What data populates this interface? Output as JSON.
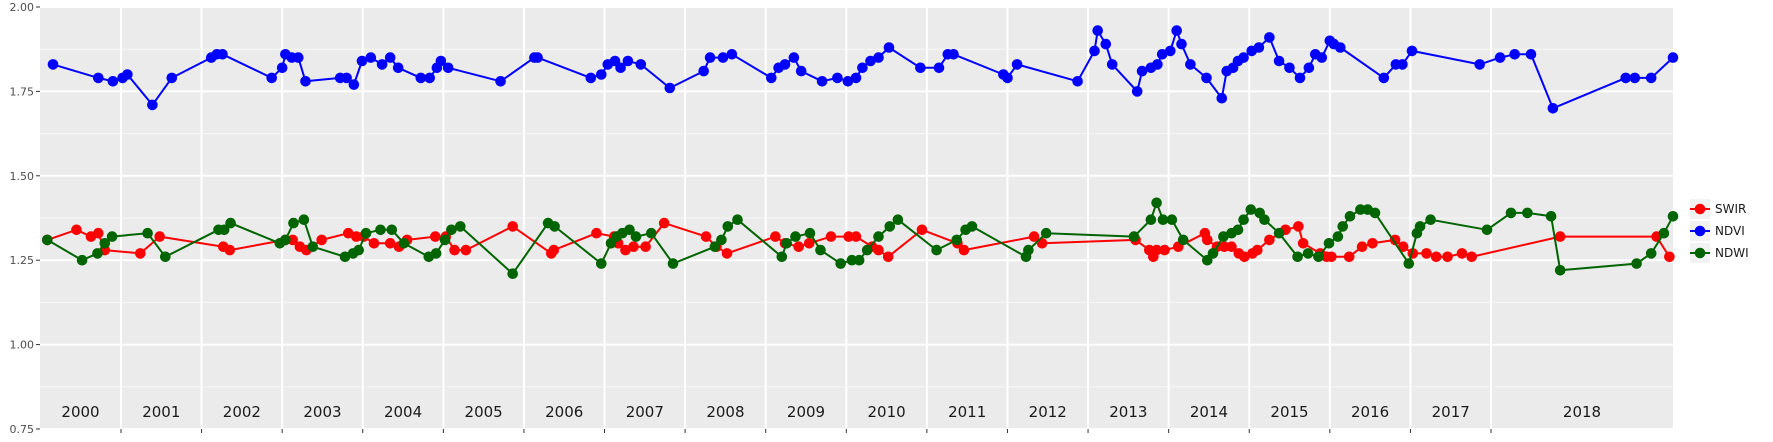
{
  "chart_data": {
    "type": "line",
    "title": "",
    "xlabel": "",
    "ylabel": "",
    "xlim": [
      2000.0,
      2018.75
    ],
    "ylim": [
      0.75,
      2.0
    ],
    "y_ticks": [
      "0.75",
      "1.00",
      "1.25",
      "1.50",
      "1.75",
      "2.00"
    ],
    "year_labels": [
      "2000",
      "2001",
      "2002",
      "2003",
      "2004",
      "2005",
      "2006",
      "2007",
      "2008",
      "2009",
      "2010",
      "2011",
      "2012",
      "2013",
      "2014",
      "2015",
      "2016",
      "2017",
      "2018"
    ],
    "grid": true,
    "legend_position": "right",
    "series": [
      {
        "name": "SWIR",
        "color": "#ff0000",
        "points": [
          [
            2000.09,
            1.31
          ],
          [
            2000.45,
            1.34
          ],
          [
            2000.63,
            1.32
          ],
          [
            2000.72,
            1.33
          ],
          [
            2000.8,
            1.28
          ],
          [
            2001.24,
            1.27
          ],
          [
            2001.48,
            1.32
          ],
          [
            2002.27,
            1.29
          ],
          [
            2002.35,
            1.28
          ],
          [
            2003.04,
            1.31
          ],
          [
            2003.13,
            1.31
          ],
          [
            2003.22,
            1.29
          ],
          [
            2003.3,
            1.28
          ],
          [
            2003.49,
            1.31
          ],
          [
            2003.82,
            1.33
          ],
          [
            2003.92,
            1.32
          ],
          [
            2004.01,
            1.32
          ],
          [
            2004.14,
            1.3
          ],
          [
            2004.34,
            1.3
          ],
          [
            2004.45,
            1.29
          ],
          [
            2004.55,
            1.31
          ],
          [
            2004.9,
            1.32
          ],
          [
            2005.03,
            1.32
          ],
          [
            2005.14,
            1.28
          ],
          [
            2005.28,
            1.28
          ],
          [
            2005.86,
            1.35
          ],
          [
            2006.34,
            1.27
          ],
          [
            2006.37,
            1.28
          ],
          [
            2006.9,
            1.33
          ],
          [
            2007.12,
            1.32
          ],
          [
            2007.17,
            1.3
          ],
          [
            2007.26,
            1.28
          ],
          [
            2007.36,
            1.29
          ],
          [
            2007.51,
            1.29
          ],
          [
            2007.74,
            1.36
          ],
          [
            2008.26,
            1.32
          ],
          [
            2008.39,
            1.29
          ],
          [
            2008.52,
            1.27
          ],
          [
            2009.12,
            1.32
          ],
          [
            2009.24,
            1.3
          ],
          [
            2009.41,
            1.29
          ],
          [
            2009.54,
            1.3
          ],
          [
            2009.81,
            1.32
          ],
          [
            2010.03,
            1.32
          ],
          [
            2010.12,
            1.32
          ],
          [
            2010.32,
            1.29
          ],
          [
            2010.4,
            1.28
          ],
          [
            2010.52,
            1.26
          ],
          [
            2010.94,
            1.34
          ],
          [
            2011.38,
            1.3
          ],
          [
            2011.46,
            1.28
          ],
          [
            2012.33,
            1.32
          ],
          [
            2012.43,
            1.3
          ],
          [
            2013.59,
            1.31
          ],
          [
            2013.76,
            1.28
          ],
          [
            2013.81,
            1.26
          ],
          [
            2013.85,
            1.28
          ],
          [
            2013.95,
            1.28
          ],
          [
            2014.12,
            1.29
          ],
          [
            2014.45,
            1.33
          ],
          [
            2014.48,
            1.31
          ],
          [
            2014.6,
            1.29
          ],
          [
            2014.69,
            1.29
          ],
          [
            2014.78,
            1.29
          ],
          [
            2014.87,
            1.27
          ],
          [
            2014.94,
            1.26
          ],
          [
            2015.04,
            1.27
          ],
          [
            2015.1,
            1.28
          ],
          [
            2015.25,
            1.31
          ],
          [
            2015.45,
            1.34
          ],
          [
            2015.61,
            1.35
          ],
          [
            2015.67,
            1.3
          ],
          [
            2015.88,
            1.27
          ],
          [
            2015.96,
            1.26
          ],
          [
            2016.02,
            1.26
          ],
          [
            2016.24,
            1.26
          ],
          [
            2016.4,
            1.29
          ],
          [
            2016.53,
            1.3
          ],
          [
            2016.81,
            1.31
          ],
          [
            2016.91,
            1.29
          ],
          [
            2017.03,
            1.27
          ],
          [
            2017.2,
            1.27
          ],
          [
            2017.32,
            1.26
          ],
          [
            2017.46,
            1.26
          ],
          [
            2017.64,
            1.27
          ],
          [
            2017.76,
            1.26
          ],
          [
            2018.38,
            1.32
          ],
          [
            2018.91,
            1.32
          ],
          [
            2018.98,
            1.26
          ]
        ]
      },
      {
        "name": "NDVI",
        "color": "#0000ff",
        "points": [
          [
            2000.16,
            1.83
          ],
          [
            2000.72,
            1.79
          ],
          [
            2000.9,
            1.78
          ],
          [
            2001.02,
            1.79
          ],
          [
            2001.08,
            1.8
          ],
          [
            2001.39,
            1.71
          ],
          [
            2001.63,
            1.79
          ],
          [
            2002.12,
            1.85
          ],
          [
            2002.19,
            1.86
          ],
          [
            2002.26,
            1.86
          ],
          [
            2002.87,
            1.79
          ],
          [
            2003.0,
            1.82
          ],
          [
            2003.04,
            1.86
          ],
          [
            2003.12,
            1.85
          ],
          [
            2003.2,
            1.85
          ],
          [
            2003.29,
            1.78
          ],
          [
            2003.72,
            1.79
          ],
          [
            2003.8,
            1.79
          ],
          [
            2003.89,
            1.77
          ],
          [
            2003.99,
            1.84
          ],
          [
            2004.1,
            1.85
          ],
          [
            2004.24,
            1.83
          ],
          [
            2004.34,
            1.85
          ],
          [
            2004.44,
            1.82
          ],
          [
            2004.72,
            1.79
          ],
          [
            2004.83,
            1.79
          ],
          [
            2004.92,
            1.82
          ],
          [
            2004.97,
            1.84
          ],
          [
            2005.06,
            1.82
          ],
          [
            2005.71,
            1.78
          ],
          [
            2006.13,
            1.85
          ],
          [
            2006.17,
            1.85
          ],
          [
            2006.83,
            1.79
          ],
          [
            2006.96,
            1.8
          ],
          [
            2007.04,
            1.83
          ],
          [
            2007.13,
            1.84
          ],
          [
            2007.2,
            1.82
          ],
          [
            2007.29,
            1.84
          ],
          [
            2007.45,
            1.83
          ],
          [
            2007.81,
            1.76
          ],
          [
            2008.23,
            1.81
          ],
          [
            2008.31,
            1.85
          ],
          [
            2008.47,
            1.85
          ],
          [
            2008.58,
            1.86
          ],
          [
            2009.07,
            1.79
          ],
          [
            2009.16,
            1.82
          ],
          [
            2009.24,
            1.83
          ],
          [
            2009.35,
            1.85
          ],
          [
            2009.44,
            1.81
          ],
          [
            2009.7,
            1.78
          ],
          [
            2009.89,
            1.79
          ],
          [
            2010.02,
            1.78
          ],
          [
            2010.12,
            1.79
          ],
          [
            2010.2,
            1.82
          ],
          [
            2010.3,
            1.84
          ],
          [
            2010.4,
            1.85
          ],
          [
            2010.53,
            1.88
          ],
          [
            2010.92,
            1.82
          ],
          [
            2011.15,
            1.82
          ],
          [
            2011.26,
            1.86
          ],
          [
            2011.33,
            1.86
          ],
          [
            2011.95,
            1.8
          ],
          [
            2012.0,
            1.79
          ],
          [
            2012.12,
            1.83
          ],
          [
            2012.87,
            1.78
          ],
          [
            2013.08,
            1.87
          ],
          [
            2013.12,
            1.93
          ],
          [
            2013.22,
            1.89
          ],
          [
            2013.3,
            1.83
          ],
          [
            2013.61,
            1.75
          ],
          [
            2013.67,
            1.81
          ],
          [
            2013.78,
            1.82
          ],
          [
            2013.86,
            1.83
          ],
          [
            2013.92,
            1.86
          ],
          [
            2014.02,
            1.87
          ],
          [
            2014.1,
            1.93
          ],
          [
            2014.16,
            1.89
          ],
          [
            2014.27,
            1.83
          ],
          [
            2014.47,
            1.79
          ],
          [
            2014.66,
            1.73
          ],
          [
            2014.72,
            1.81
          ],
          [
            2014.8,
            1.82
          ],
          [
            2014.86,
            1.84
          ],
          [
            2014.93,
            1.85
          ],
          [
            2015.03,
            1.87
          ],
          [
            2015.12,
            1.88
          ],
          [
            2015.25,
            1.91
          ],
          [
            2015.37,
            1.84
          ],
          [
            2015.5,
            1.82
          ],
          [
            2015.63,
            1.79
          ],
          [
            2015.74,
            1.82
          ],
          [
            2015.82,
            1.86
          ],
          [
            2015.9,
            1.85
          ],
          [
            2016.0,
            1.9
          ],
          [
            2016.05,
            1.89
          ],
          [
            2016.13,
            1.88
          ],
          [
            2016.67,
            1.79
          ],
          [
            2016.82,
            1.83
          ],
          [
            2016.9,
            1.83
          ],
          [
            2017.02,
            1.87
          ],
          [
            2017.86,
            1.83
          ],
          [
            2018.05,
            1.85
          ],
          [
            2018.13,
            1.86
          ],
          [
            2018.22,
            1.86
          ],
          [
            2018.34,
            1.7
          ],
          [
            2018.74,
            1.79
          ],
          [
            2018.79,
            1.79
          ],
          [
            2018.88,
            1.79
          ],
          [
            2019.0,
            1.85
          ]
        ]
      },
      {
        "name": "NDWI",
        "color": "#006400",
        "points": [
          [
            2000.09,
            1.31
          ],
          [
            2000.52,
            1.25
          ],
          [
            2000.71,
            1.27
          ],
          [
            2000.8,
            1.3
          ],
          [
            2000.89,
            1.32
          ],
          [
            2001.33,
            1.33
          ],
          [
            2001.55,
            1.26
          ],
          [
            2002.21,
            1.34
          ],
          [
            2002.28,
            1.34
          ],
          [
            2002.36,
            1.36
          ],
          [
            2002.97,
            1.3
          ],
          [
            2003.04,
            1.31
          ],
          [
            2003.14,
            1.36
          ],
          [
            2003.27,
            1.37
          ],
          [
            2003.38,
            1.29
          ],
          [
            2003.78,
            1.26
          ],
          [
            2003.88,
            1.27
          ],
          [
            2003.95,
            1.28
          ],
          [
            2004.04,
            1.33
          ],
          [
            2004.22,
            1.34
          ],
          [
            2004.36,
            1.34
          ],
          [
            2004.51,
            1.3
          ],
          [
            2004.82,
            1.26
          ],
          [
            2004.91,
            1.27
          ],
          [
            2005.02,
            1.31
          ],
          [
            2005.1,
            1.34
          ],
          [
            2005.21,
            1.35
          ],
          [
            2005.86,
            1.21
          ],
          [
            2006.3,
            1.36
          ],
          [
            2006.38,
            1.35
          ],
          [
            2006.96,
            1.24
          ],
          [
            2007.08,
            1.3
          ],
          [
            2007.15,
            1.32
          ],
          [
            2007.22,
            1.33
          ],
          [
            2007.31,
            1.34
          ],
          [
            2007.39,
            1.32
          ],
          [
            2007.58,
            1.33
          ],
          [
            2007.85,
            1.24
          ],
          [
            2008.37,
            1.29
          ],
          [
            2008.45,
            1.31
          ],
          [
            2008.53,
            1.35
          ],
          [
            2008.65,
            1.37
          ],
          [
            2009.2,
            1.26
          ],
          [
            2009.26,
            1.3
          ],
          [
            2009.37,
            1.32
          ],
          [
            2009.55,
            1.33
          ],
          [
            2009.68,
            1.28
          ],
          [
            2009.93,
            1.24
          ],
          [
            2010.07,
            1.25
          ],
          [
            2010.16,
            1.25
          ],
          [
            2010.26,
            1.28
          ],
          [
            2010.4,
            1.32
          ],
          [
            2010.54,
            1.35
          ],
          [
            2010.64,
            1.37
          ],
          [
            2011.12,
            1.28
          ],
          [
            2011.37,
            1.31
          ],
          [
            2011.48,
            1.34
          ],
          [
            2011.56,
            1.35
          ],
          [
            2012.23,
            1.26
          ],
          [
            2012.26,
            1.28
          ],
          [
            2012.48,
            1.33
          ],
          [
            2013.57,
            1.32
          ],
          [
            2013.78,
            1.37
          ],
          [
            2013.85,
            1.42
          ],
          [
            2013.93,
            1.37
          ],
          [
            2014.04,
            1.37
          ],
          [
            2014.18,
            1.31
          ],
          [
            2014.48,
            1.25
          ],
          [
            2014.55,
            1.27
          ],
          [
            2014.68,
            1.32
          ],
          [
            2014.78,
            1.33
          ],
          [
            2014.86,
            1.34
          ],
          [
            2014.93,
            1.37
          ],
          [
            2015.02,
            1.4
          ],
          [
            2015.13,
            1.39
          ],
          [
            2015.19,
            1.37
          ],
          [
            2015.37,
            1.33
          ],
          [
            2015.6,
            1.26
          ],
          [
            2015.73,
            1.27
          ],
          [
            2015.86,
            1.26
          ],
          [
            2015.99,
            1.3
          ],
          [
            2016.1,
            1.32
          ],
          [
            2016.16,
            1.35
          ],
          [
            2016.25,
            1.38
          ],
          [
            2016.38,
            1.4
          ],
          [
            2016.47,
            1.4
          ],
          [
            2016.56,
            1.39
          ],
          [
            2016.98,
            1.24
          ],
          [
            2017.08,
            1.33
          ],
          [
            2017.12,
            1.35
          ],
          [
            2017.25,
            1.37
          ],
          [
            2017.95,
            1.34
          ],
          [
            2018.11,
            1.39
          ],
          [
            2018.2,
            1.39
          ],
          [
            2018.33,
            1.38
          ],
          [
            2018.38,
            1.22
          ],
          [
            2018.8,
            1.24
          ],
          [
            2018.88,
            1.27
          ],
          [
            2018.95,
            1.33
          ],
          [
            2019.0,
            1.38
          ]
        ]
      }
    ]
  }
}
